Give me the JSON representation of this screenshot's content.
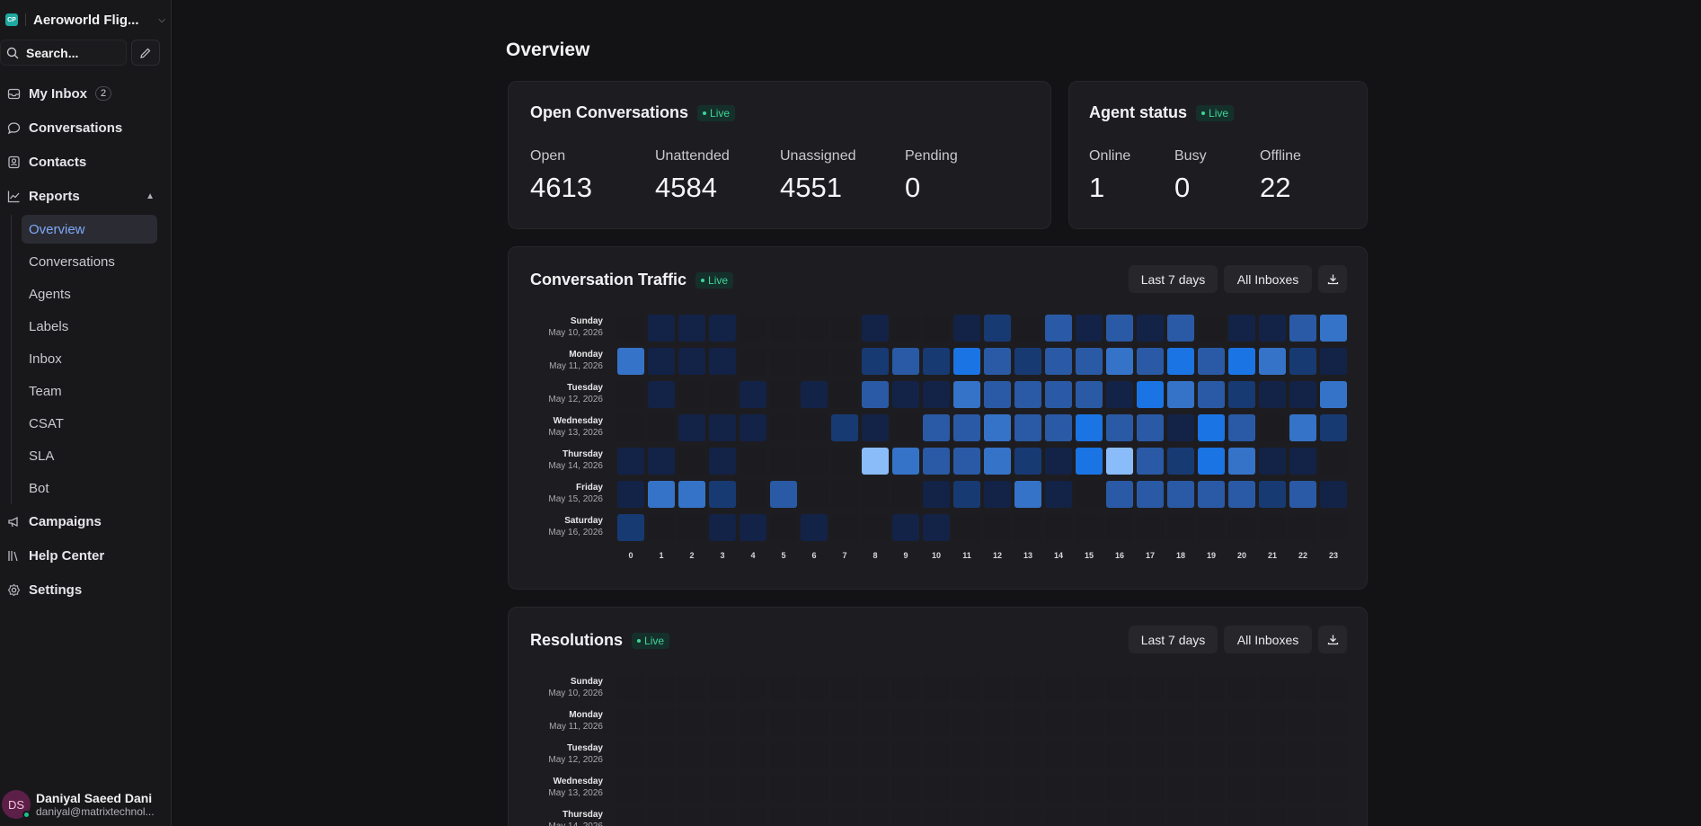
{
  "workspace": {
    "logo": "CP",
    "name": "Aeroworld Flig..."
  },
  "search": {
    "label": "Search..."
  },
  "nav": {
    "inbox": {
      "label": "My Inbox",
      "count": "2"
    },
    "conversations": "Conversations",
    "contacts": "Contacts",
    "reports": "Reports",
    "reports_sub": [
      "Overview",
      "Conversations",
      "Agents",
      "Labels",
      "Inbox",
      "Team",
      "CSAT",
      "SLA",
      "Bot"
    ],
    "campaigns": "Campaigns",
    "help_center": "Help Center",
    "settings": "Settings"
  },
  "user": {
    "initials": "DS",
    "name": "Daniyal Saeed Dani",
    "email": "daniyal@matrixtechnol..."
  },
  "page": {
    "title": "Overview"
  },
  "open_conversations": {
    "title": "Open Conversations",
    "live": "Live",
    "metrics": [
      {
        "label": "Open",
        "value": "4613"
      },
      {
        "label": "Unattended",
        "value": "4584"
      },
      {
        "label": "Unassigned",
        "value": "4551"
      },
      {
        "label": "Pending",
        "value": "0"
      }
    ]
  },
  "agent_status": {
    "title": "Agent status",
    "live": "Live",
    "metrics": [
      {
        "label": "Online",
        "value": "1"
      },
      {
        "label": "Busy",
        "value": "0"
      },
      {
        "label": "Offline",
        "value": "22"
      }
    ]
  },
  "traffic": {
    "title": "Conversation Traffic",
    "live": "Live",
    "range_button": "Last 7 days",
    "inbox_button": "All Inboxes"
  },
  "resolutions": {
    "title": "Resolutions",
    "live": "Live",
    "range_button": "Last 7 days",
    "inbox_button": "All Inboxes"
  },
  "days": [
    {
      "day": "Sunday",
      "date": "May 10, 2026"
    },
    {
      "day": "Monday",
      "date": "May 11, 2026"
    },
    {
      "day": "Tuesday",
      "date": "May 12, 2026"
    },
    {
      "day": "Wednesday",
      "date": "May 13, 2026"
    },
    {
      "day": "Thursday",
      "date": "May 14, 2026"
    },
    {
      "day": "Friday",
      "date": "May 15, 2026"
    },
    {
      "day": "Saturday",
      "date": "May 16, 2026"
    }
  ],
  "hours": [
    "0",
    "1",
    "2",
    "3",
    "4",
    "5",
    "6",
    "7",
    "8",
    "9",
    "10",
    "11",
    "12",
    "13",
    "14",
    "15",
    "16",
    "17",
    "18",
    "19",
    "20",
    "21",
    "22",
    "23"
  ],
  "colors": {
    "accent": "#7fa8f8",
    "live": "#3ed49a",
    "heat_levels": [
      "#1c1c20",
      "#132247",
      "#173a73",
      "#2a5aa5",
      "#3573c8",
      "#1b74e4",
      "#8bbcfa"
    ]
  },
  "chart_data": {
    "type": "heatmap",
    "title": "Conversation Traffic",
    "rows": [
      "Sunday",
      "Monday",
      "Tuesday",
      "Wednesday",
      "Thursday",
      "Friday",
      "Saturday"
    ],
    "columns": [
      "0",
      "1",
      "2",
      "3",
      "4",
      "5",
      "6",
      "7",
      "8",
      "9",
      "10",
      "11",
      "12",
      "13",
      "14",
      "15",
      "16",
      "17",
      "18",
      "19",
      "20",
      "21",
      "22",
      "23"
    ],
    "levels": [
      [
        0,
        1,
        1,
        1,
        0,
        0,
        0,
        0,
        1,
        0,
        0,
        1,
        2,
        0,
        3,
        1,
        3,
        1,
        3,
        0,
        1,
        1,
        3,
        4
      ],
      [
        4,
        1,
        1,
        1,
        0,
        0,
        0,
        0,
        2,
        3,
        2,
        5,
        3,
        2,
        3,
        3,
        4,
        3,
        5,
        3,
        5,
        4,
        2,
        1
      ],
      [
        0,
        1,
        0,
        0,
        1,
        0,
        1,
        0,
        3,
        1,
        1,
        4,
        3,
        3,
        3,
        3,
        1,
        5,
        4,
        3,
        2,
        1,
        1,
        4
      ],
      [
        0,
        0,
        1,
        1,
        1,
        0,
        0,
        2,
        1,
        0,
        3,
        3,
        4,
        3,
        3,
        5,
        3,
        3,
        1,
        5,
        3,
        0,
        4,
        2
      ],
      [
        1,
        1,
        0,
        1,
        0,
        0,
        0,
        0,
        6,
        4,
        3,
        3,
        4,
        2,
        1,
        5,
        6,
        3,
        2,
        5,
        4,
        1,
        1,
        0
      ],
      [
        1,
        4,
        4,
        2,
        0,
        3,
        0,
        0,
        0,
        0,
        1,
        2,
        1,
        4,
        1,
        0,
        3,
        3,
        3,
        3,
        3,
        2,
        3,
        1
      ],
      [
        2,
        0,
        0,
        1,
        1,
        0,
        1,
        0,
        0,
        1,
        1,
        0,
        0,
        0,
        0,
        0,
        0,
        0,
        0,
        0,
        0,
        0,
        0,
        0
      ]
    ]
  }
}
